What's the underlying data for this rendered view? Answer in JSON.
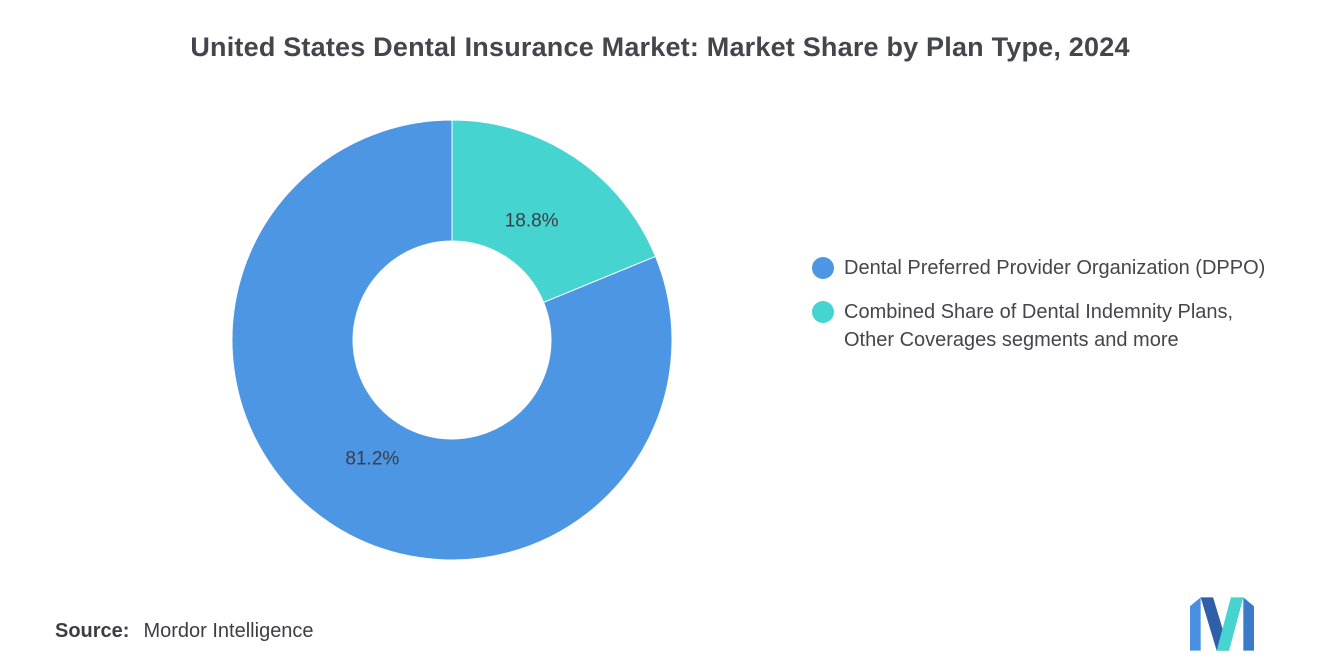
{
  "title": "United States Dental Insurance Market: Market Share by Plan Type, 2024",
  "source": {
    "label": "Source:",
    "value": "Mordor Intelligence"
  },
  "legend": {
    "items": [
      {
        "label": "Dental Preferred Provider Organization (DPPO)",
        "color": "#4C96E3"
      },
      {
        "label": "Combined Share of Dental Indemnity Plans, Other Coverages segments and more",
        "color": "#45D4D0"
      }
    ]
  },
  "chart_data": {
    "type": "pie",
    "donut": true,
    "title": "United States Dental Insurance Market: Market Share by Plan Type, 2024",
    "slices": [
      {
        "label": "Dental Preferred Provider Organization (DPPO)",
        "value": 81.2,
        "data_label": "81.2%",
        "color": "#4C96E3"
      },
      {
        "label": "Combined Share of Dental Indemnity Plans, Other Coverages segments and more",
        "value": 18.8,
        "data_label": "18.8%",
        "color": "#45D4D0"
      }
    ],
    "start": "top",
    "direction": "clockwise",
    "plot_sequence": [
      1,
      0
    ],
    "inner_radius_ratio": 0.45,
    "label_radius_ratio": 0.65,
    "label_color": "#3d3d44",
    "legend_position": "right",
    "background": "#ffffff"
  }
}
